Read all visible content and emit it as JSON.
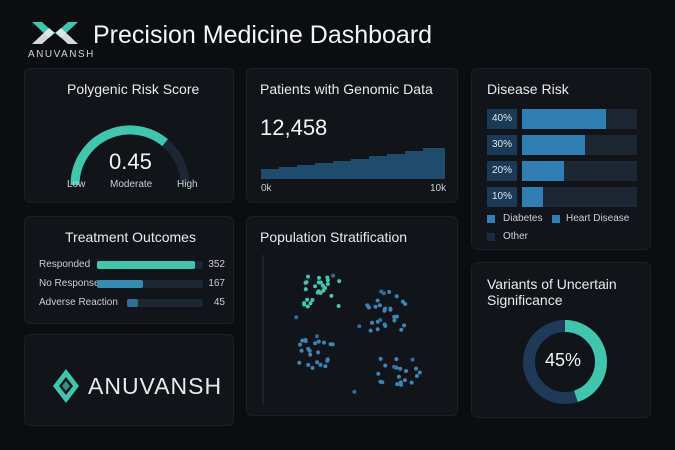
{
  "header": {
    "logo_text": "ANUVANSH",
    "title": "Precision Medicine Dashboard"
  },
  "colors": {
    "teal": "#3fc7ad",
    "blue": "#2f7fb5",
    "navy": "#1d2c3d",
    "track": "#1d2733"
  },
  "prs": {
    "title": "Polygenic Risk Score",
    "value": "0.45",
    "fraction": 0.45,
    "label_low": "Low",
    "label_mid": "Moderate",
    "label_high": "High"
  },
  "patients": {
    "title": "Patients with Genomic Data",
    "count": "12,458",
    "axis_start": "0k",
    "axis_end": "10k"
  },
  "disease": {
    "title": "Disease Risk",
    "rows": [
      {
        "label": "40%",
        "value": 0.4
      },
      {
        "label": "30%",
        "value": 0.3
      },
      {
        "label": "20%",
        "value": 0.2
      },
      {
        "label": "10%",
        "value": 0.1
      }
    ],
    "legend": [
      "Diabetes",
      "Heart Disease",
      "Other"
    ]
  },
  "treatment": {
    "title": "Treatment Outcomes",
    "max": 352,
    "rows": [
      {
        "label": "Responded",
        "value": 352,
        "display": "352",
        "color": "#3fc7ad"
      },
      {
        "label": "No Response",
        "value": 167,
        "display": "167",
        "color": "#2f8fb0"
      },
      {
        "label": "Adverse Reaction",
        "value": 45,
        "display": "45",
        "color": "#2f6f9a"
      }
    ]
  },
  "population": {
    "title": "Population Stratification"
  },
  "vus": {
    "title_line1": "Variants of Uncertain",
    "title_line2": "Significance",
    "value": "45%",
    "fraction": 0.45
  },
  "brand": {
    "name": "ANUVANSH"
  }
}
